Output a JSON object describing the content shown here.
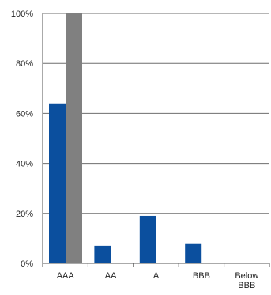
{
  "chart_data": {
    "type": "bar",
    "title": "",
    "xlabel": "",
    "ylabel": "",
    "ylim": [
      0,
      100
    ],
    "y_ticks": [
      0,
      20,
      40,
      60,
      80,
      100
    ],
    "y_tick_labels": [
      "0%",
      "20%",
      "40%",
      "60%",
      "80%",
      "100%"
    ],
    "grid": true,
    "legend": "none",
    "categories": [
      "AAA",
      "AA",
      "A",
      "BBB",
      "Below BBB"
    ],
    "category_lines": [
      [
        "AAA"
      ],
      [
        "AA"
      ],
      [
        "A"
      ],
      [
        "BBB"
      ],
      [
        "Below",
        "BBB"
      ]
    ],
    "series": [
      {
        "color": "#0b4f9e",
        "values": [
          64,
          7,
          19,
          8,
          0
        ]
      },
      {
        "color": "#808080",
        "values": [
          100,
          0,
          0,
          0,
          0
        ]
      }
    ]
  }
}
